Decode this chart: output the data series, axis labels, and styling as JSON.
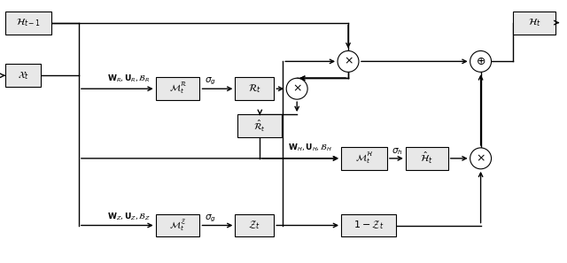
{
  "bg": "#ffffff",
  "lc": "#000000",
  "lw": 1.0,
  "figsize": [
    6.4,
    2.97
  ],
  "dpi": 100,
  "box_fill": "#e8e8e8",
  "box_ec": "#000000"
}
